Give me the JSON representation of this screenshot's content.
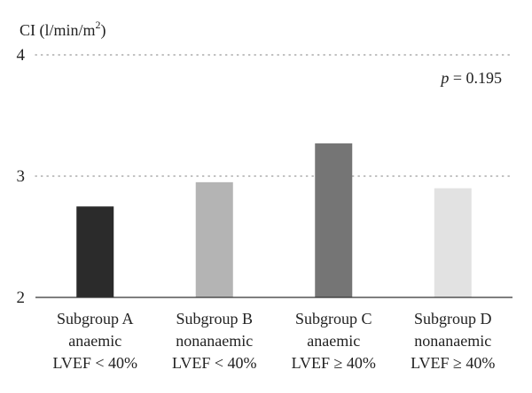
{
  "chart_data": {
    "type": "bar",
    "ylabel_base": "CI (l/min/m",
    "ylabel_sup": "2",
    "ylabel_close": ")",
    "annotation_p_symbol": "p",
    "annotation_p_value": " = 0.195",
    "ylim": [
      2,
      4
    ],
    "yticks": [
      {
        "value": 2,
        "label": "2",
        "gridline": false
      },
      {
        "value": 3,
        "label": "3",
        "gridline": true
      },
      {
        "value": 4,
        "label": "4",
        "gridline": true
      }
    ],
    "categories": [
      {
        "name": "Subgroup A anaemic LVEF < 40%",
        "lines": [
          "Subgroup A",
          "anaemic",
          "LVEF < 40%"
        ],
        "value": 2.75,
        "color": "#2b2b2b"
      },
      {
        "name": "Subgroup B nonanaemic LVEF < 40%",
        "lines": [
          "Subgroup B",
          "nonanaemic",
          "LVEF < 40%"
        ],
        "value": 2.95,
        "color": "#b4b4b4"
      },
      {
        "name": "Subgroup C anaemic LVEF ≥ 40%",
        "lines": [
          "Subgroup C",
          "anaemic",
          "LVEF ≥ 40%"
        ],
        "value": 3.27,
        "color": "#757575"
      },
      {
        "name": "Subgroup D nonanaemic LVEF ≥ 40%",
        "lines": [
          "Subgroup D",
          "nonanaemic",
          "LVEF ≥ 40%"
        ],
        "value": 2.9,
        "color": "#e2e2e2"
      }
    ],
    "grid": "dotted-horizontal",
    "legend": "none"
  }
}
